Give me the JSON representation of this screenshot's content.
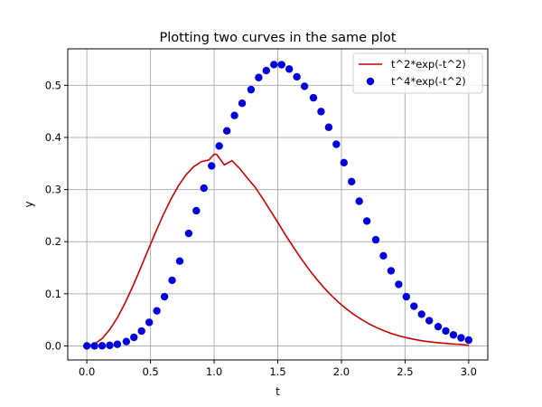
{
  "chart_data": {
    "type": "line",
    "title": "Plotting two curves in the same plot",
    "xlabel": "t",
    "ylabel": "y",
    "xlim": [
      -0.15,
      3.15
    ],
    "ylim": [
      -0.027,
      0.57
    ],
    "xticks": [
      0.0,
      0.5,
      1.0,
      1.5,
      2.0,
      2.5,
      3.0
    ],
    "xtick_labels": [
      "0.0",
      "0.5",
      "1.0",
      "1.5",
      "2.0",
      "2.5",
      "3.0"
    ],
    "yticks": [
      0.0,
      0.1,
      0.2,
      0.3,
      0.4,
      0.5
    ],
    "ytick_labels": [
      "0.0",
      "0.1",
      "0.2",
      "0.3",
      "0.4",
      "0.5"
    ],
    "grid": true,
    "legend_position": "top-right",
    "series": [
      {
        "name": "t^2*exp(-t^2)",
        "style": "line",
        "color": "#cc0000",
        "x": [
          0.0,
          0.06,
          0.12,
          0.18,
          0.24,
          0.3,
          0.36,
          0.42,
          0.48,
          0.54,
          0.6,
          0.66,
          0.72,
          0.78,
          0.84,
          0.9,
          0.96,
          1.0,
          1.02,
          1.08,
          1.14,
          1.2,
          1.26,
          1.32,
          1.38,
          1.44,
          1.5,
          1.56,
          1.62,
          1.68,
          1.74,
          1.8,
          1.86,
          1.92,
          1.98,
          2.04,
          2.1,
          2.16,
          2.22,
          2.28,
          2.34,
          2.4,
          2.46,
          2.52,
          2.58,
          2.64,
          2.7,
          2.76,
          2.82,
          2.88,
          2.94,
          3.0
        ],
        "y": [
          0.0,
          0.0036,
          0.0142,
          0.0313,
          0.0542,
          0.0821,
          0.1138,
          0.148,
          0.1833,
          0.218,
          0.2512,
          0.2813,
          0.3074,
          0.3285,
          0.3441,
          0.3536,
          0.3569,
          0.3679,
          0.3675,
          0.3472,
          0.3555,
          0.3407,
          0.3222,
          0.3052,
          0.2833,
          0.2604,
          0.2371,
          0.213,
          0.1906,
          0.1688,
          0.1484,
          0.1296,
          0.1124,
          0.0969,
          0.0831,
          0.0708,
          0.0598,
          0.0503,
          0.0419,
          0.0347,
          0.0285,
          0.0232,
          0.0188,
          0.0152,
          0.0121,
          0.0096,
          0.0076,
          0.006,
          0.0047,
          0.0036,
          0.0028,
          0.0011
        ]
      },
      {
        "name": "t^4*exp(-t^2)",
        "style": "markers",
        "color": "#0000dd",
        "x": [
          0.0,
          0.06,
          0.12,
          0.18,
          0.24,
          0.31,
          0.37,
          0.43,
          0.49,
          0.55,
          0.61,
          0.67,
          0.73,
          0.8,
          0.86,
          0.92,
          0.98,
          1.04,
          1.1,
          1.16,
          1.22,
          1.29,
          1.35,
          1.41,
          1.47,
          1.53,
          1.59,
          1.65,
          1.71,
          1.78,
          1.84,
          1.9,
          1.96,
          2.02,
          2.08,
          2.14,
          2.2,
          2.27,
          2.33,
          2.39,
          2.45,
          2.51,
          2.57,
          2.63,
          2.69,
          2.76,
          2.82,
          2.88,
          2.94,
          3.0
        ],
        "y": [
          0.0,
          0.0,
          0.0002,
          0.001,
          0.0031,
          0.0083,
          0.0164,
          0.0285,
          0.0451,
          0.0673,
          0.0944,
          0.1259,
          0.1627,
          0.2159,
          0.2594,
          0.3026,
          0.3454,
          0.3836,
          0.4126,
          0.4421,
          0.4655,
          0.4917,
          0.5149,
          0.5282,
          0.5397,
          0.5396,
          0.5312,
          0.5163,
          0.4981,
          0.4761,
          0.4496,
          0.4195,
          0.3869,
          0.3517,
          0.3152,
          0.2776,
          0.2395,
          0.2036,
          0.1729,
          0.1441,
          0.1181,
          0.0943,
          0.0761,
          0.0608,
          0.0484,
          0.0369,
          0.0287,
          0.0211,
          0.0155,
          0.0112
        ]
      }
    ]
  }
}
